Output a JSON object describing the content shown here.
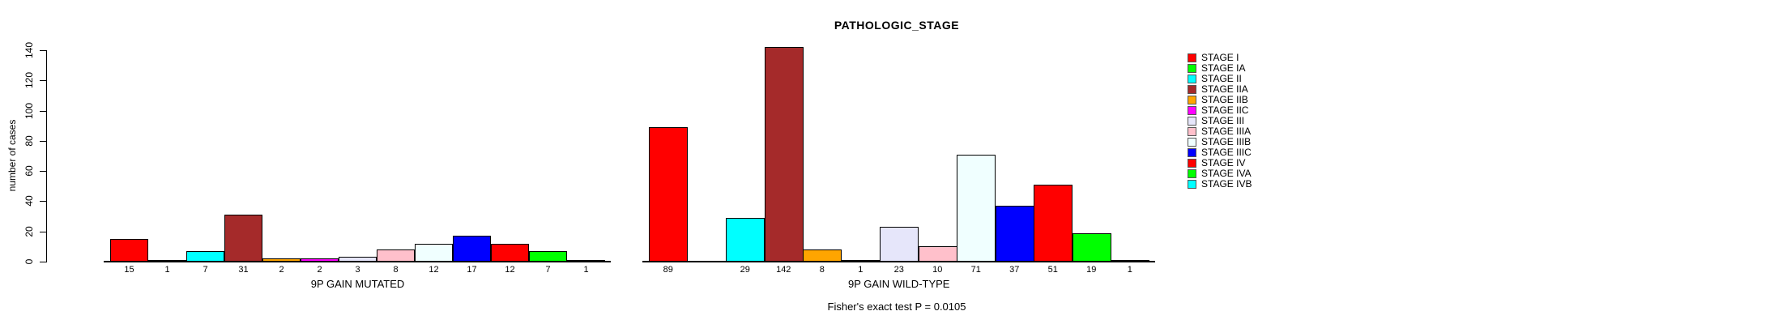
{
  "title": "PATHOLOGIC_STAGE",
  "footer": "Fisher's exact test P = 0.0105",
  "y_axis": {
    "label": "number of cases",
    "ticks": [
      0,
      20,
      40,
      60,
      80,
      100,
      120,
      140
    ]
  },
  "legend": {
    "items": [
      {
        "label": "STAGE I",
        "color": "#FF0000"
      },
      {
        "label": "STAGE IA",
        "color": "#00FF00"
      },
      {
        "label": "STAGE II",
        "color": "#00FFFF"
      },
      {
        "label": "STAGE IIA",
        "color": "#A52A2A"
      },
      {
        "label": "STAGE IIB",
        "color": "#FFA500"
      },
      {
        "label": "STAGE IIC",
        "color": "#FF00FF"
      },
      {
        "label": "STAGE III",
        "color": "#E6E6FA"
      },
      {
        "label": "STAGE IIIA",
        "color": "#FFC0CB"
      },
      {
        "label": "STAGE IIIB",
        "color": "#F0FFFF"
      },
      {
        "label": "STAGE IIIC",
        "color": "#0000FF"
      },
      {
        "label": "STAGE IV",
        "color": "#FF0000"
      },
      {
        "label": "STAGE IVA",
        "color": "#00FF00"
      },
      {
        "label": "STAGE IVB",
        "color": "#00FFFF"
      }
    ]
  },
  "chart_data": {
    "type": "bar",
    "title": "PATHOLOGIC_STAGE",
    "ylabel": "number of cases",
    "xlabel": "",
    "ylim": [
      0,
      140
    ],
    "yticks": [
      0,
      20,
      40,
      60,
      80,
      100,
      120,
      140
    ],
    "grid": false,
    "legend_position": "right",
    "annotation": "Fisher's exact test P = 0.0105",
    "categories": [
      "STAGE I",
      "STAGE IA",
      "STAGE II",
      "STAGE IIA",
      "STAGE IIB",
      "STAGE IIC",
      "STAGE III",
      "STAGE IIIA",
      "STAGE IIIB",
      "STAGE IIIC",
      "STAGE IV",
      "STAGE IVA",
      "STAGE IVB"
    ],
    "colors": [
      "#FF0000",
      "#00FF00",
      "#00FFFF",
      "#A52A2A",
      "#FFA500",
      "#FF00FF",
      "#E6E6FA",
      "#FFC0CB",
      "#F0FFFF",
      "#0000FF",
      "#FF0000",
      "#00FF00",
      "#00FFFF"
    ],
    "series": [
      {
        "name": "9P GAIN MUTATED",
        "values": [
          15,
          1,
          7,
          31,
          2,
          2,
          3,
          8,
          12,
          17,
          12,
          7,
          1
        ]
      },
      {
        "name": "9P GAIN WILD-TYPE",
        "values": [
          89,
          0,
          29,
          142,
          8,
          1,
          23,
          10,
          71,
          37,
          51,
          19,
          1
        ]
      }
    ]
  }
}
